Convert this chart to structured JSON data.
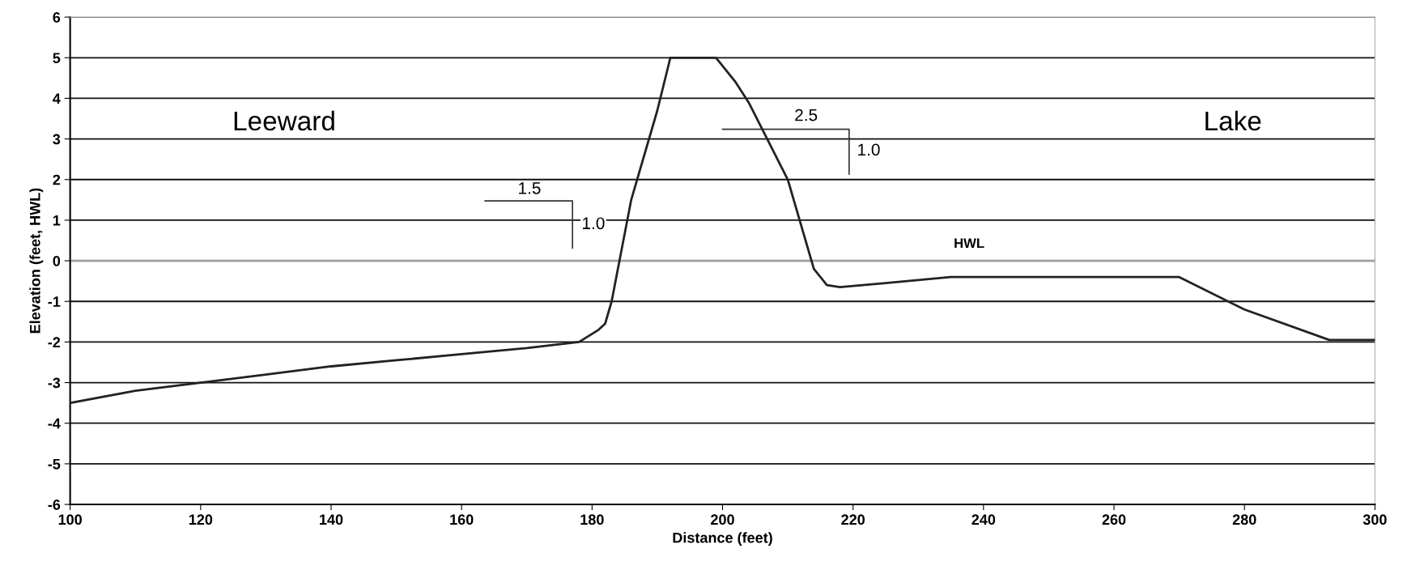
{
  "chart_data": {
    "type": "line",
    "xlabel": "Distance (feet)",
    "ylabel": "Elevation (feet, HWL)",
    "x": [
      100,
      110,
      120,
      130,
      140,
      150,
      160,
      170,
      178,
      181,
      182,
      183,
      186,
      190,
      192,
      199,
      202,
      204,
      210,
      214,
      216,
      218,
      225,
      235,
      270,
      280,
      293,
      300
    ],
    "series": [
      {
        "color": "#222222",
        "values": [
          -3.5,
          -3.2,
          -3.0,
          -2.8,
          -2.6,
          -2.45,
          -2.3,
          -2.15,
          -2.0,
          -1.7,
          -1.55,
          -1.0,
          1.5,
          3.7,
          5.0,
          5.0,
          4.4,
          3.9,
          2.0,
          -0.2,
          -0.6,
          -0.65,
          -0.55,
          -0.4,
          -0.4,
          -1.2,
          -1.95,
          -1.95
        ]
      }
    ],
    "xlim": [
      100,
      300
    ],
    "ylim": [
      -6,
      6
    ],
    "xticks": [
      100,
      120,
      140,
      160,
      180,
      200,
      220,
      240,
      260,
      280,
      300
    ],
    "yticks": [
      -6,
      -5,
      -4,
      -3,
      -2,
      -1,
      0,
      1,
      2,
      3,
      4,
      5,
      6
    ],
    "grid": "y",
    "marker": "none",
    "line_style": "solid",
    "ref_lines": [
      {
        "axis": "y",
        "value": 0,
        "label": "HWL",
        "color": "#a0a0a0"
      }
    ],
    "annotations": [
      "Leeward",
      "Lake",
      "1.5",
      "1.0",
      "2.5",
      "1.0"
    ]
  }
}
